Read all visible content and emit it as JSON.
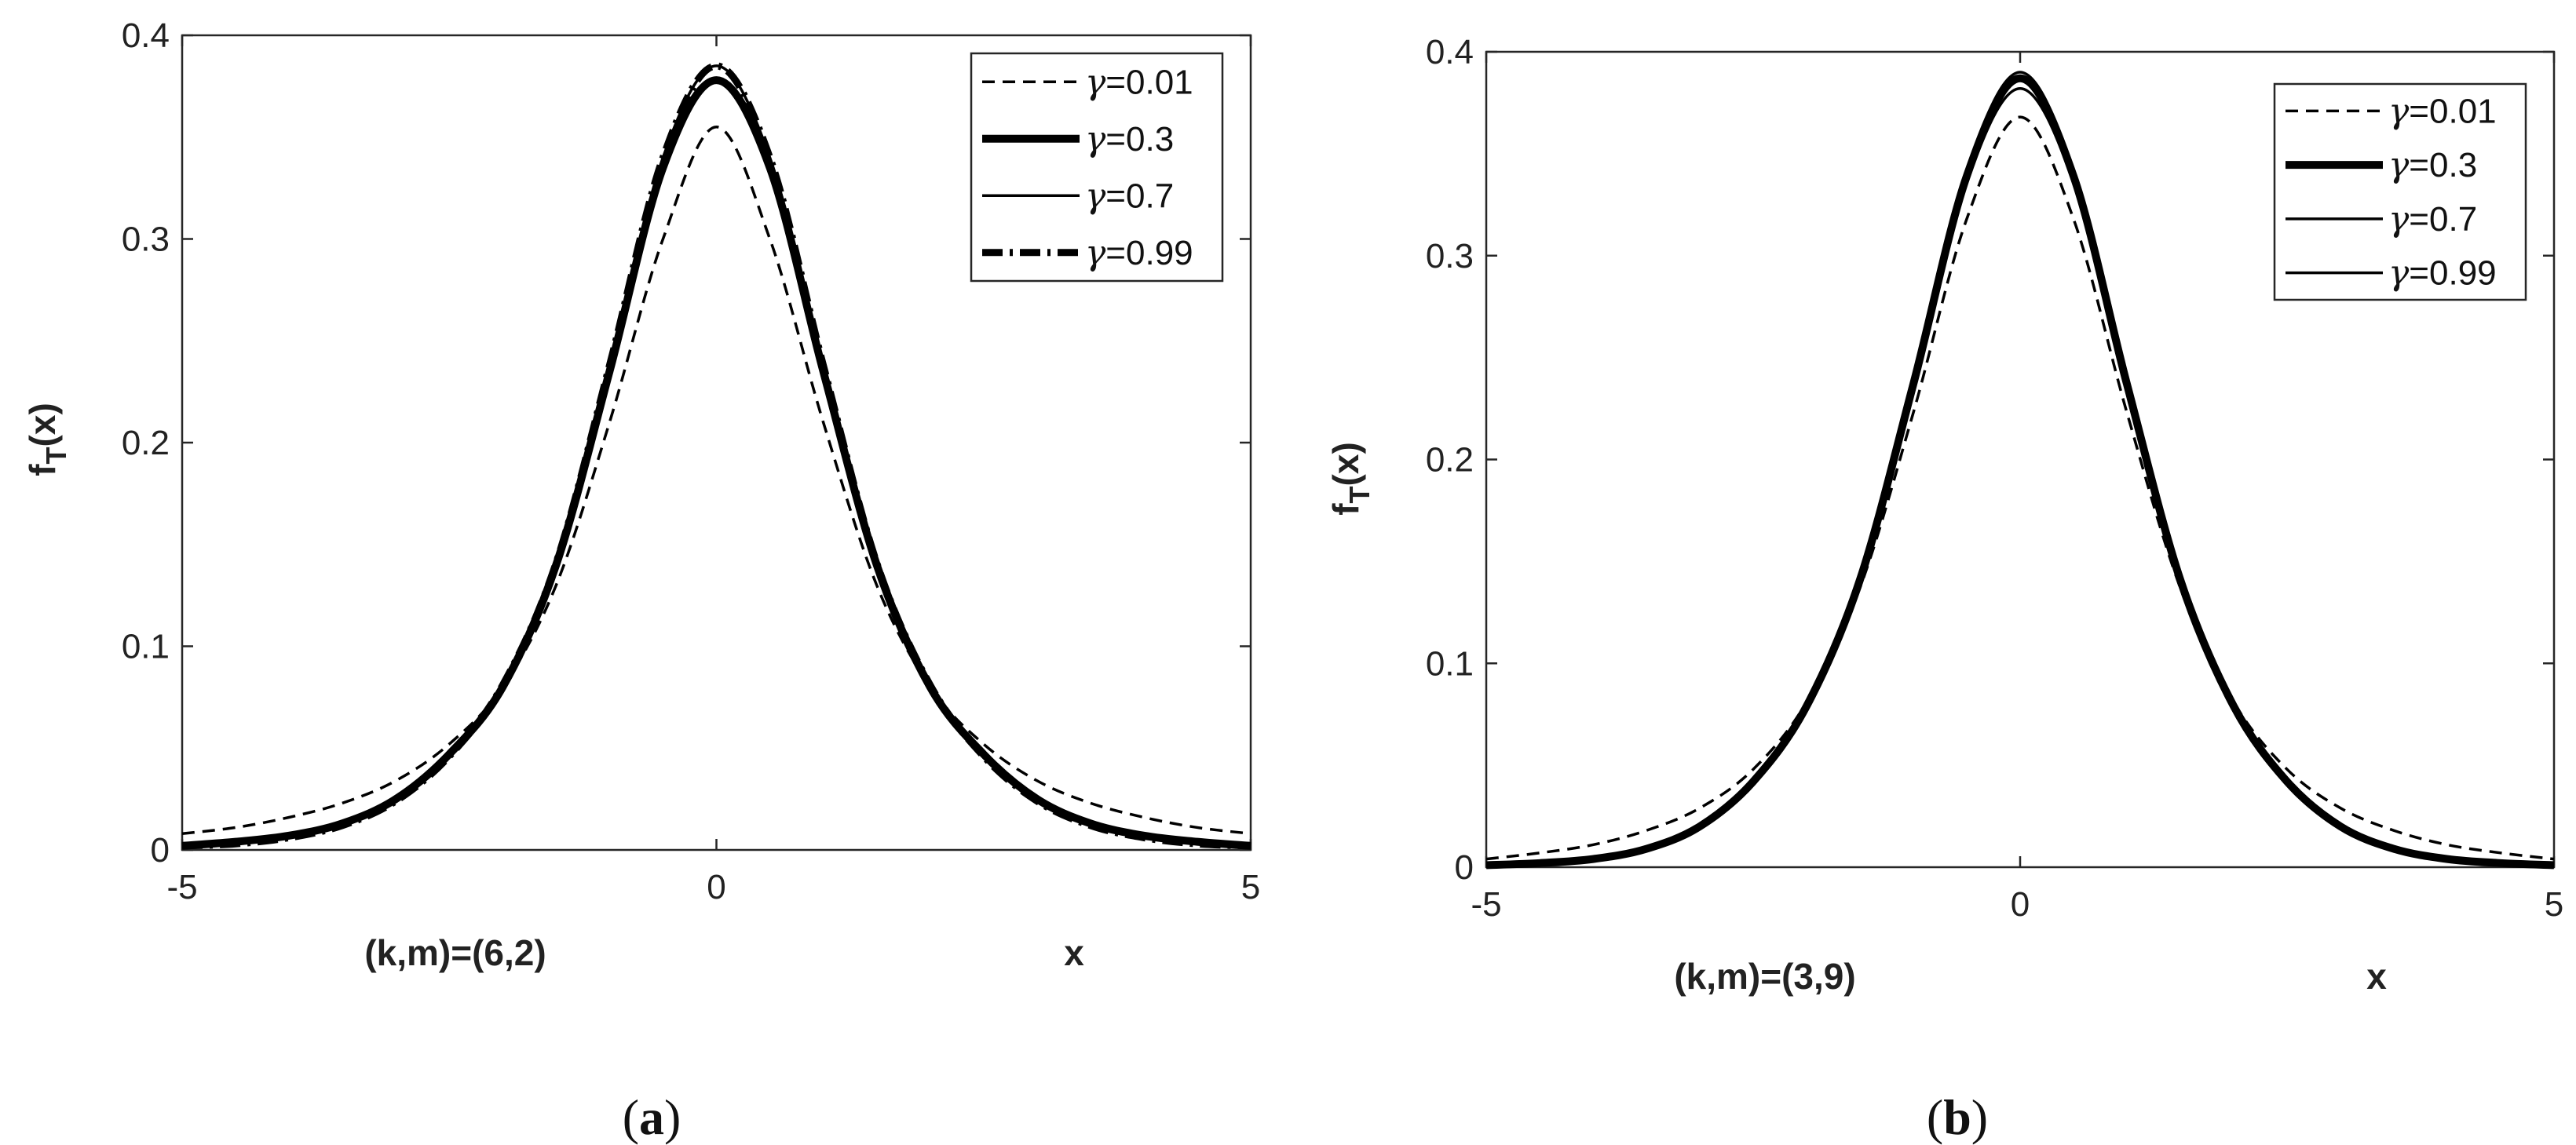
{
  "chart_data": [
    {
      "type": "line",
      "panel": "a",
      "caption_letter": "a",
      "xlabel": "x",
      "ylabel": "f_T(x)",
      "subtitle": "(k,m)=(6,2)",
      "xlim": [
        -5,
        5
      ],
      "ylim": [
        0,
        0.4
      ],
      "xticks": [
        "-5",
        "0",
        "5"
      ],
      "yticks": [
        "0",
        "0.1",
        "0.2",
        "0.3",
        "0.4"
      ],
      "legend_position": "top-right",
      "x": [
        -5,
        -4.5,
        -4,
        -3.5,
        -3,
        -2.5,
        -2,
        -1.5,
        -1,
        -0.5,
        0,
        0.5,
        1,
        1.5,
        2,
        2.5,
        3,
        3.5,
        4,
        4.5,
        5
      ],
      "series": [
        {
          "name": "γ=0.01",
          "style": "dashed-thin",
          "values": [
            0.008,
            0.011,
            0.016,
            0.023,
            0.034,
            0.052,
            0.08,
            0.13,
            0.21,
            0.3,
            0.355,
            0.3,
            0.21,
            0.13,
            0.08,
            0.052,
            0.034,
            0.023,
            0.016,
            0.011,
            0.008
          ]
        },
        {
          "name": "γ=0.3",
          "style": "solid-thick",
          "values": [
            0.002,
            0.004,
            0.007,
            0.013,
            0.025,
            0.047,
            0.08,
            0.14,
            0.235,
            0.335,
            0.378,
            0.335,
            0.235,
            0.14,
            0.08,
            0.047,
            0.025,
            0.013,
            0.007,
            0.004,
            0.002
          ]
        },
        {
          "name": "γ=0.7",
          "style": "solid-thin",
          "values": [
            0.002,
            0.003,
            0.006,
            0.012,
            0.024,
            0.046,
            0.081,
            0.141,
            0.238,
            0.34,
            0.385,
            0.34,
            0.238,
            0.141,
            0.081,
            0.046,
            0.024,
            0.012,
            0.006,
            0.003,
            0.002
          ]
        },
        {
          "name": "γ=0.99",
          "style": "dashdot-thick",
          "values": [
            0.002,
            0.003,
            0.006,
            0.012,
            0.024,
            0.046,
            0.081,
            0.141,
            0.238,
            0.34,
            0.385,
            0.34,
            0.238,
            0.141,
            0.081,
            0.046,
            0.024,
            0.012,
            0.006,
            0.003,
            0.002
          ]
        }
      ]
    },
    {
      "type": "line",
      "panel": "b",
      "caption_letter": "b",
      "xlabel": "x",
      "ylabel": "f_T(x)",
      "subtitle": "(k,m)=(3,9)",
      "xlim": [
        -5,
        5
      ],
      "ylim": [
        0,
        0.4
      ],
      "xticks": [
        "-5",
        "0",
        "5"
      ],
      "yticks": [
        "0",
        "0.1",
        "0.2",
        "0.3",
        "0.4"
      ],
      "legend_position": "top-right",
      "x": [
        -5,
        -4.5,
        -4,
        -3.5,
        -3,
        -2.5,
        -2,
        -1.5,
        -1,
        -0.5,
        0,
        0.5,
        1,
        1.5,
        2,
        2.5,
        3,
        3.5,
        4,
        4.5,
        5
      ],
      "series": [
        {
          "name": "γ=0.01",
          "style": "dashed-thin",
          "values": [
            0.004,
            0.007,
            0.011,
            0.018,
            0.029,
            0.048,
            0.081,
            0.137,
            0.223,
            0.318,
            0.368,
            0.318,
            0.223,
            0.137,
            0.081,
            0.048,
            0.029,
            0.018,
            0.011,
            0.007,
            0.004
          ]
        },
        {
          "name": "γ=0.3",
          "style": "solid-thick",
          "values": [
            0.001,
            0.002,
            0.004,
            0.009,
            0.02,
            0.042,
            0.079,
            0.141,
            0.237,
            0.339,
            0.387,
            0.339,
            0.237,
            0.141,
            0.079,
            0.042,
            0.02,
            0.009,
            0.004,
            0.002,
            0.001
          ]
        },
        {
          "name": "γ=0.7",
          "style": "solid-thin",
          "values": [
            0.001,
            0.002,
            0.004,
            0.009,
            0.02,
            0.042,
            0.079,
            0.142,
            0.24,
            0.342,
            0.39,
            0.342,
            0.24,
            0.142,
            0.079,
            0.042,
            0.02,
            0.009,
            0.004,
            0.002,
            0.001
          ]
        },
        {
          "name": "γ=0.99",
          "style": "solid-thin",
          "values": [
            0.001,
            0.002,
            0.004,
            0.009,
            0.02,
            0.042,
            0.079,
            0.141,
            0.236,
            0.336,
            0.382,
            0.336,
            0.236,
            0.141,
            0.079,
            0.042,
            0.02,
            0.009,
            0.004,
            0.002,
            0.001
          ]
        }
      ]
    }
  ]
}
